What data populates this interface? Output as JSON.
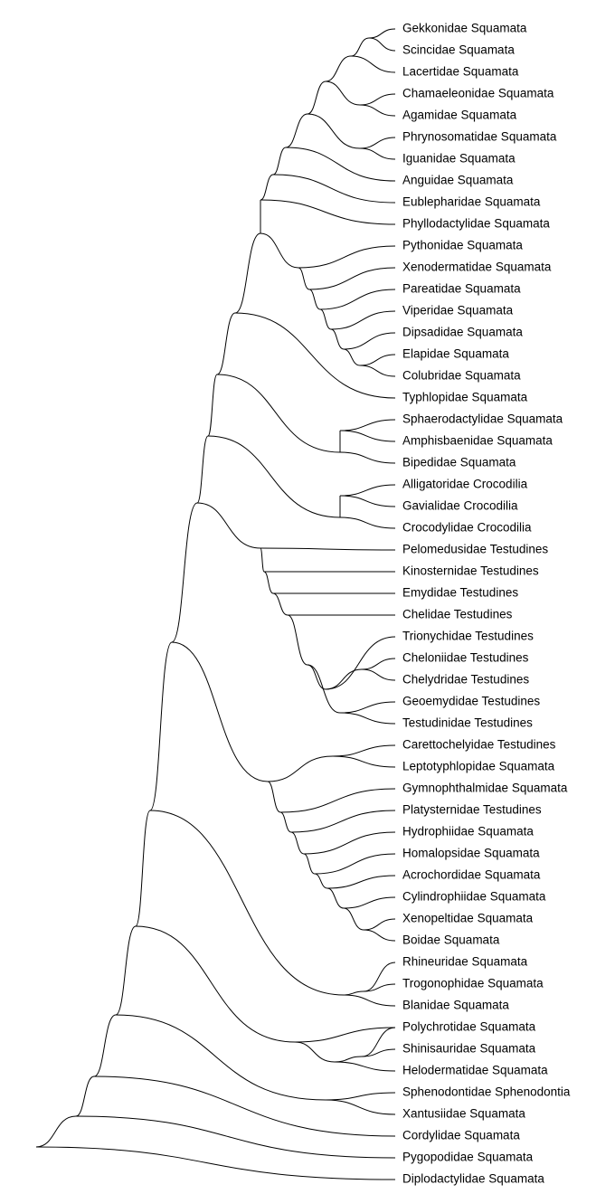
{
  "tree": {
    "tips": [
      {
        "family": "Gekkonidae",
        "order": "Squamata"
      },
      {
        "family": "Scincidae",
        "order": "Squamata"
      },
      {
        "family": "Lacertidae",
        "order": "Squamata"
      },
      {
        "family": "Chamaeleonidae",
        "order": "Squamata"
      },
      {
        "family": "Agamidae",
        "order": "Squamata"
      },
      {
        "family": "Phrynosomatidae",
        "order": "Squamata"
      },
      {
        "family": "Iguanidae",
        "order": "Squamata"
      },
      {
        "family": "Anguidae",
        "order": "Squamata"
      },
      {
        "family": "Eublepharidae",
        "order": "Squamata"
      },
      {
        "family": "Phyllodactylidae",
        "order": "Squamata"
      },
      {
        "family": "Pythonidae",
        "order": "Squamata"
      },
      {
        "family": "Xenodermatidae",
        "order": "Squamata"
      },
      {
        "family": "Pareatidae",
        "order": "Squamata"
      },
      {
        "family": "Viperidae",
        "order": "Squamata"
      },
      {
        "family": "Dipsadidae",
        "order": "Squamata"
      },
      {
        "family": "Elapidae",
        "order": "Squamata"
      },
      {
        "family": "Colubridae",
        "order": "Squamata"
      },
      {
        "family": "Typhlopidae",
        "order": "Squamata"
      },
      {
        "family": "Sphaerodactylidae",
        "order": "Squamata"
      },
      {
        "family": "Amphisbaenidae",
        "order": "Squamata"
      },
      {
        "family": "Bipedidae",
        "order": "Squamata"
      },
      {
        "family": "Alligatoridae",
        "order": "Crocodilia"
      },
      {
        "family": "Gavialidae",
        "order": "Crocodilia"
      },
      {
        "family": "Crocodylidae",
        "order": "Crocodilia"
      },
      {
        "family": "Pelomedusidae",
        "order": "Testudines"
      },
      {
        "family": "Kinosternidae",
        "order": "Testudines"
      },
      {
        "family": "Emydidae",
        "order": "Testudines"
      },
      {
        "family": "Chelidae",
        "order": "Testudines"
      },
      {
        "family": "Trionychidae",
        "order": "Testudines"
      },
      {
        "family": "Cheloniidae",
        "order": "Testudines"
      },
      {
        "family": "Chelydridae",
        "order": "Testudines"
      },
      {
        "family": "Geoemydidae",
        "order": "Testudines"
      },
      {
        "family": "Testudinidae",
        "order": "Testudines"
      },
      {
        "family": "Carettochelyidae",
        "order": "Testudines"
      },
      {
        "family": "Leptotyphlopidae",
        "order": "Squamata"
      },
      {
        "family": "Gymnophthalmidae",
        "order": "Squamata"
      },
      {
        "family": "Platysternidae",
        "order": "Testudines"
      },
      {
        "family": "Hydrophiidae",
        "order": "Squamata"
      },
      {
        "family": "Homalopsidae",
        "order": "Squamata"
      },
      {
        "family": "Acrochordidae",
        "order": "Squamata"
      },
      {
        "family": "Cylindrophiidae",
        "order": "Squamata"
      },
      {
        "family": "Xenopeltidae",
        "order": "Squamata"
      },
      {
        "family": "Boidae",
        "order": "Squamata"
      },
      {
        "family": "Rhineuridae",
        "order": "Squamata"
      },
      {
        "family": "Trogonophidae",
        "order": "Squamata"
      },
      {
        "family": "Blanidae",
        "order": "Squamata"
      },
      {
        "family": "Polychrotidae",
        "order": "Squamata"
      },
      {
        "family": "Shinisauridae",
        "order": "Squamata"
      },
      {
        "family": "Helodermatidae",
        "order": "Squamata"
      },
      {
        "family": "Sphenodontidae",
        "order": "Sphenodontia"
      },
      {
        "family": "Xantusiidae",
        "order": "Squamata"
      },
      {
        "family": "Cordylidae",
        "order": "Squamata"
      },
      {
        "family": "Pygopodidae",
        "order": "Squamata"
      },
      {
        "family": "Diplodactylidae",
        "order": "Squamata"
      }
    ],
    "style": {
      "branch_color": "#000000",
      "label_color": "#000000",
      "background": "#ffffff"
    }
  }
}
